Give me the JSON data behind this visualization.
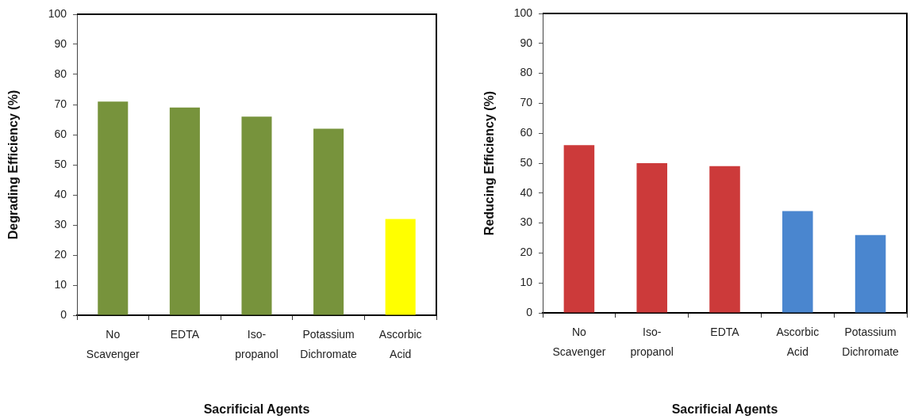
{
  "chart_data": [
    {
      "type": "bar",
      "xlabel": "Sacrificial Agents",
      "ylabel": "Degrading Efficiency (%)",
      "categories": [
        "No Scavenger",
        "EDTA",
        "Iso-propanol",
        "Potassium Dichromate",
        "Ascorbic Acid"
      ],
      "values": [
        71,
        69,
        66,
        62,
        32
      ],
      "colors": [
        "#77933c",
        "#77933c",
        "#77933c",
        "#77933c",
        "#ffff00"
      ],
      "ylim": [
        0,
        100
      ],
      "yticks": [
        0,
        10,
        20,
        30,
        40,
        50,
        60,
        70,
        80,
        90,
        100
      ]
    },
    {
      "type": "bar",
      "xlabel": "Sacrificial Agents",
      "ylabel": "Reducing Efficiency (%)",
      "categories": [
        "No Scavenger",
        "Iso-propanol",
        "EDTA",
        "Ascorbic Acid",
        "Potassium Dichromate"
      ],
      "values": [
        56,
        50,
        49,
        34,
        26
      ],
      "colors": [
        "#cc3a3a",
        "#cc3a3a",
        "#cc3a3a",
        "#4a86cf",
        "#4a86cf"
      ],
      "ylim": [
        0,
        100
      ],
      "yticks": [
        0,
        10,
        20,
        30,
        40,
        50,
        60,
        70,
        80,
        90,
        100
      ]
    }
  ]
}
